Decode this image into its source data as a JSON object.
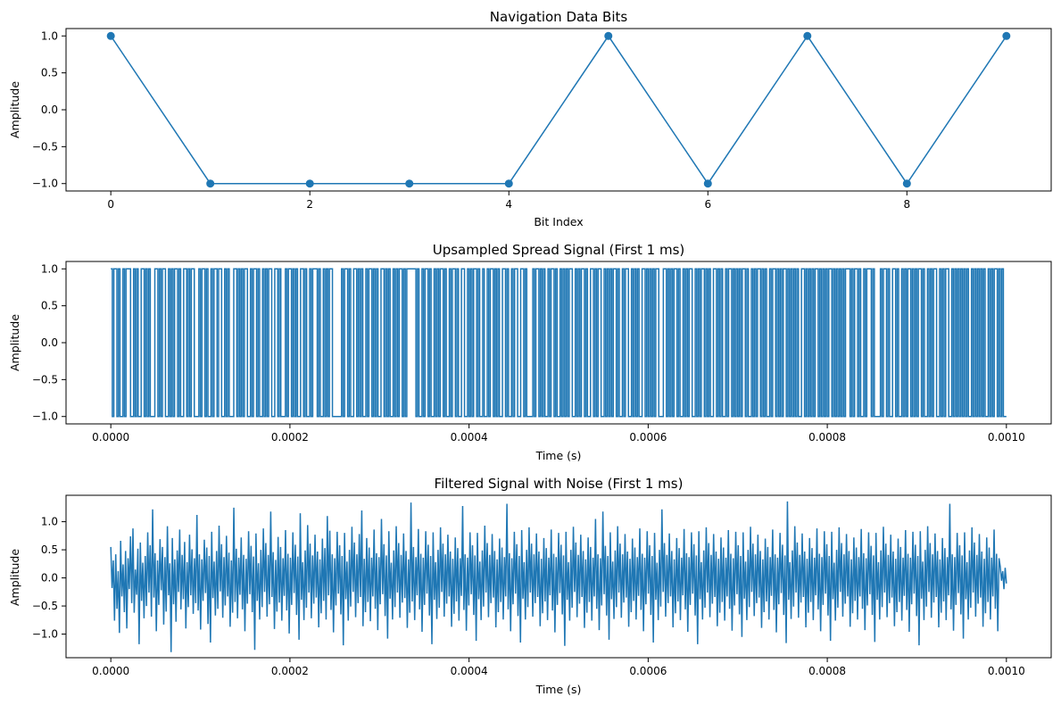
{
  "chart_data": [
    {
      "type": "line",
      "title": "Navigation Data Bits",
      "xlabel": "Bit Index",
      "ylabel": "Amplitude",
      "xlim": [
        -0.45,
        9.45
      ],
      "ylim": [
        -1.1,
        1.1
      ],
      "xticks": [
        0,
        2,
        4,
        6,
        8
      ],
      "xtick_labels": [
        "0",
        "2",
        "4",
        "6",
        "8"
      ],
      "yticks": [
        1.0,
        0.5,
        0.0,
        -0.5,
        -1.0
      ],
      "ytick_labels": [
        "1.0",
        "0.5",
        "0.0",
        "−0.5",
        "−1.0"
      ],
      "markers": true,
      "color": "#1f77b4",
      "x": [
        0,
        1,
        2,
        3,
        4,
        5,
        6,
        7,
        8,
        9
      ],
      "y": [
        1,
        -1,
        -1,
        -1,
        -1,
        1,
        -1,
        1,
        -1,
        1
      ]
    },
    {
      "type": "line",
      "title": "Upsampled Spread Signal (First 1 ms)",
      "xlabel": "Time (s)",
      "ylabel": "Amplitude",
      "xlim": [
        -5e-05,
        0.00105
      ],
      "ylim": [
        -1.1,
        1.1
      ],
      "xticks": [
        0.0,
        0.0002,
        0.0004,
        0.0006,
        0.0008,
        0.001
      ],
      "xtick_labels": [
        "0.0000",
        "0.0002",
        "0.0004",
        "0.0006",
        "0.0008",
        "0.0010"
      ],
      "yticks": [
        1.0,
        0.5,
        0.0,
        -0.5,
        -1.0
      ],
      "ytick_labels": [
        "1.0",
        "0.5",
        "0.0",
        "−0.5",
        "−1.0"
      ],
      "step": true,
      "color": "#1f77b4",
      "t_start": 0.0,
      "t_end": 0.001,
      "chips": [
        1,
        -1,
        1,
        1,
        -1,
        1,
        -1,
        -1,
        1,
        -1,
        1,
        1,
        1,
        -1,
        -1,
        1,
        -1,
        1,
        -1,
        -1,
        1,
        1,
        -1,
        1,
        -1,
        1,
        -1,
        -1,
        -1,
        1,
        1,
        -1,
        1,
        -1,
        1,
        1,
        -1,
        -1,
        1,
        -1,
        1,
        -1,
        1,
        1,
        -1,
        1,
        -1,
        -1,
        1,
        1,
        -1,
        1,
        -1,
        1,
        1,
        -1,
        -1,
        -1,
        1,
        -1,
        1,
        1,
        -1,
        1,
        -1,
        -1,
        1,
        -1,
        1,
        1,
        -1,
        1,
        1,
        -1,
        -1,
        1,
        -1,
        1,
        -1,
        -1,
        -1,
        1,
        1,
        -1,
        1,
        -1,
        1,
        -1,
        1,
        1,
        -1,
        -1,
        1,
        -1,
        1,
        1,
        -1,
        1,
        -1,
        -1,
        1,
        -1,
        1,
        -1,
        1,
        1,
        -1,
        -1,
        1,
        1,
        -1,
        1,
        -1,
        -1,
        -1,
        1,
        -1,
        1,
        1,
        -1,
        1,
        -1,
        1,
        -1,
        -1,
        1,
        1,
        -1,
        1,
        -1,
        -1,
        1,
        -1,
        1,
        1,
        1,
        -1,
        1,
        -1,
        -1,
        1,
        -1,
        1,
        -1,
        1,
        1,
        -1,
        -1,
        -1,
        -1,
        -1,
        -1,
        1,
        -1,
        1,
        1,
        -1,
        1,
        -1,
        -1,
        1,
        1,
        -1,
        1,
        -1,
        1,
        -1,
        -1,
        1,
        -1,
        1,
        1,
        -1,
        1,
        -1,
        1,
        -1,
        -1,
        1,
        1,
        -1,
        1,
        -1,
        1,
        -1,
        -1,
        1,
        -1,
        1,
        -1,
        1,
        1,
        -1,
        1,
        -1,
        1,
        1,
        1,
        1,
        1,
        1,
        -1,
        1,
        -1,
        -1,
        1,
        -1,
        1,
        1,
        -1,
        1,
        -1,
        -1,
        1,
        -1,
        1,
        -1,
        1,
        1,
        -1,
        1,
        -1,
        -1,
        1,
        -1,
        1,
        1,
        -1,
        1,
        -1,
        -1,
        1,
        1,
        -1,
        -1,
        1,
        -1,
        1,
        -1,
        1,
        1,
        -1,
        1,
        -1,
        -1,
        1,
        -1,
        -1,
        1,
        -1,
        1,
        1,
        -1,
        1,
        -1,
        1,
        -1,
        -1,
        1,
        1,
        -1,
        1,
        -1,
        -1,
        1,
        -1,
        1,
        1,
        -1,
        -1,
        1,
        1,
        -1,
        1,
        -1,
        -1,
        -1,
        -1,
        1,
        -1,
        1,
        1,
        -1,
        1,
        -1,
        1,
        -1,
        -1,
        1,
        -1,
        1,
        1,
        -1,
        1,
        -1,
        -1,
        1,
        -1,
        1,
        -1,
        1,
        -1,
        1,
        1,
        -1,
        -1,
        1,
        -1,
        1,
        -1,
        1,
        1,
        -1,
        1,
        -1,
        -1,
        1,
        1,
        -1,
        1,
        -1,
        1,
        1,
        -1,
        -1,
        1,
        -1,
        1,
        -1,
        1,
        -1,
        1,
        1,
        -1,
        1,
        -1,
        -1,
        1,
        -1,
        1,
        1,
        -1,
        -1,
        1,
        -1,
        1,
        -1,
        1,
        -1,
        -1,
        1,
        1,
        -1,
        1,
        -1,
        1,
        -1,
        1,
        -1,
        1,
        1,
        -1,
        -1,
        -1,
        1,
        1,
        -1,
        1,
        -1,
        1,
        -1,
        1,
        1,
        -1,
        1,
        -1,
        -1,
        1,
        -1,
        1,
        -1,
        1,
        1,
        -1,
        -1,
        1,
        -1,
        1,
        -1,
        1,
        1,
        -1,
        1,
        -1,
        1,
        -1,
        -1,
        1,
        1,
        -1,
        1,
        -1,
        1,
        -1,
        -1,
        1,
        -1,
        1,
        1,
        -1,
        1,
        -1,
        1,
        -1,
        1,
        -1,
        1,
        1,
        -1,
        1,
        -1,
        -1,
        1,
        -1,
        1,
        -1,
        1,
        1,
        -1,
        1,
        -1,
        1,
        -1,
        -1,
        1,
        -1,
        1,
        1,
        -1,
        1,
        -1,
        1,
        -1,
        1,
        1,
        -1,
        1,
        -1,
        1,
        -1,
        1,
        -1,
        1,
        -1,
        -1,
        1,
        1,
        -1,
        1,
        -1,
        1,
        -1,
        1,
        -1,
        1,
        1,
        -1,
        1,
        -1,
        1,
        -1,
        1,
        -1,
        1,
        1,
        -1,
        1,
        -1,
        1,
        -1,
        1,
        -1,
        1,
        -1,
        1,
        1,
        1,
        -1,
        1,
        -1,
        1,
        1,
        -1,
        1,
        -1,
        -1,
        1,
        -1,
        1,
        1,
        1,
        -1,
        1,
        -1,
        -1,
        -1,
        -1,
        1,
        -1,
        1,
        1,
        -1,
        1,
        -1,
        -1,
        1,
        1,
        -1,
        1,
        -1,
        -1,
        1,
        -1,
        1,
        -1,
        1,
        1,
        -1,
        1,
        -1,
        1,
        -1,
        1,
        1,
        -1,
        1,
        -1,
        -1,
        1,
        -1,
        1,
        -1,
        1,
        1,
        -1,
        -1,
        1,
        -1,
        1,
        -1,
        1,
        1,
        -1,
        -1,
        1,
        -1,
        1,
        -1,
        1,
        -1,
        1,
        -1,
        1,
        -1,
        1,
        -1,
        -1,
        1,
        -1,
        1,
        -1,
        1,
        -1,
        1,
        -1,
        1,
        -1,
        -1,
        1,
        -1,
        1,
        -1,
        1,
        1,
        -1,
        1,
        -1,
        1,
        -1,
        -1
      ]
    },
    {
      "type": "line",
      "title": "Filtered Signal with Noise (First 1 ms)",
      "xlabel": "Time (s)",
      "ylabel": "Amplitude",
      "xlim": [
        -5e-05,
        0.00105
      ],
      "ylim": [
        -1.42,
        1.47
      ],
      "xticks": [
        0.0,
        0.0002,
        0.0004,
        0.0006,
        0.0008,
        0.001
      ],
      "xtick_labels": [
        "0.0000",
        "0.0002",
        "0.0004",
        "0.0006",
        "0.0008",
        "0.0010"
      ],
      "yticks": [
        1.0,
        0.5,
        0.0,
        -0.5,
        -1.0
      ],
      "ytick_labels": [
        "1.0",
        "0.5",
        "0.0",
        "−0.5",
        "−1.0"
      ],
      "color": "#1f77b4",
      "t_start": 0.0,
      "t_end": 0.001,
      "samples": [
        0.55,
        -0.18,
        0.31,
        -0.76,
        0.42,
        -0.55,
        0.12,
        -0.98,
        0.66,
        -0.33,
        0.24,
        -0.61,
        0.48,
        -0.9,
        0.35,
        -0.2,
        0.74,
        -0.45,
        0.88,
        -0.62,
        0.15,
        -0.3,
        0.52,
        -1.18,
        0.63,
        -0.41,
        0.27,
        -0.72,
        0.39,
        -0.5,
        0.81,
        -0.26,
        0.58,
        -0.69,
        1.22,
        -0.35,
        0.44,
        -0.95,
        0.31,
        -0.48,
        0.69,
        -0.22,
        0.55,
        -0.83,
        0.37,
        -0.6,
        0.92,
        -0.31,
        0.26,
        -1.32,
        0.71,
        -0.47,
        0.33,
        -0.78,
        0.49,
        -0.25,
        0.86,
        -0.56,
        0.41,
        -0.38,
        0.64,
        -0.9,
        0.28,
        -0.52,
        0.77,
        -0.31,
        0.51,
        -0.64,
        0.35,
        -0.45,
        1.12,
        -0.58,
        0.42,
        -0.92,
        0.33,
        -0.41,
        0.68,
        -0.27,
        0.54,
        -0.82,
        0.39,
        -1.15,
        0.82,
        -0.36,
        0.29,
        -0.67,
        0.48,
        -0.55,
        0.93,
        -0.24,
        0.6,
        -0.71,
        0.37,
        -0.49,
        0.75,
        -0.33,
        0.45,
        -0.87,
        0.31,
        -0.62,
        1.25,
        -0.43,
        0.52,
        -0.72,
        0.36,
        -0.3,
        0.72,
        -0.56,
        0.41,
        -0.95,
        0.34,
        -0.46,
        0.83,
        -0.29,
        0.57,
        -0.61,
        0.38,
        -1.28,
        0.79,
        -0.41,
        0.26,
        -0.74,
        0.5,
        -0.52,
        0.88,
        -0.25,
        0.62,
        -0.69,
        0.41,
        -0.47,
        1.18,
        -0.34,
        0.46,
        -0.91,
        0.32,
        -0.6,
        0.73,
        -0.44,
        0.55,
        -0.76,
        0.35,
        -0.32,
        0.85,
        -0.58,
        0.43,
        -0.99,
        0.36,
        -0.48,
        0.81,
        -0.27,
        0.59,
        -0.66,
        0.38,
        -1.1,
        1.15,
        -0.39,
        0.28,
        -0.75,
        0.49,
        -0.53,
        0.94,
        -0.26,
        0.61,
        -0.72,
        0.4,
        -0.46,
        0.77,
        -0.35,
        0.47,
        -0.88,
        0.33,
        -0.63,
        0.7,
        -0.41,
        0.53,
        -0.74,
        1.1,
        -0.31,
        0.84,
        -0.57,
        0.42,
        -0.97,
        0.35,
        -0.49,
        0.82,
        -0.28,
        0.58,
        -0.65,
        0.39,
        -1.2,
        0.8,
        -0.38,
        0.29,
        -0.76,
        0.5,
        -0.51,
        0.91,
        -0.25,
        0.63,
        -0.7,
        0.42,
        -0.45,
        0.78,
        -0.34,
        1.2,
        -0.86,
        0.34,
        -0.61,
        0.71,
        -0.43,
        0.54,
        -0.77,
        0.36,
        -0.33,
        0.86,
        -0.55,
        0.44,
        -0.93,
        0.37,
        -0.47,
        1.05,
        -0.29,
        0.6,
        -0.68,
        0.4,
        -1.08,
        0.83,
        -0.37,
        0.27,
        -0.74,
        0.49,
        -0.52,
        0.92,
        -0.26,
        0.62,
        -0.71,
        0.41,
        -0.44,
        0.79,
        -0.36,
        0.48,
        -0.89,
        0.33,
        -0.62,
        1.34,
        -0.42,
        0.55,
        -0.75,
        0.37,
        -0.31,
        0.87,
        -0.56,
        0.43,
        -0.96,
        0.36,
        -0.48,
        0.83,
        -0.28,
        0.59,
        -0.67,
        0.39,
        -1.18,
        0.81,
        -0.39,
        0.28,
        -0.73,
        0.5,
        -0.53,
        0.9,
        -0.25,
        0.61,
        -0.69,
        0.42,
        -0.46,
        0.77,
        -0.33,
        0.47,
        -0.87,
        0.34,
        -0.64,
        0.72,
        -0.42,
        0.53,
        -0.76,
        0.35,
        -0.32,
        1.28,
        -0.57,
        0.42,
        -0.94,
        0.36,
        -0.49,
        0.81,
        -0.29,
        0.58,
        -0.66,
        0.4,
        -1.12,
        0.8,
        -0.38,
        0.29,
        -0.75,
        0.49,
        -0.51,
        0.93,
        -0.26,
        0.62,
        -0.7,
        0.41,
        -0.45,
        0.78,
        -0.35,
        0.48,
        -0.88,
        0.33,
        -0.61,
        0.7,
        -0.43,
        0.54,
        -0.74,
        0.37,
        -0.33,
        1.32,
        -0.56,
        0.44,
        -0.95,
        0.35,
        -0.47,
        0.82,
        -0.28,
        0.6,
        -0.68,
        0.39,
        -1.15,
        0.85,
        -0.37,
        0.28,
        -0.74,
        0.5,
        -0.52,
        0.9,
        -0.26,
        0.61,
        -0.69,
        0.42,
        -0.45,
        0.79,
        -0.34,
        0.47,
        -0.86,
        0.34,
        -0.63,
        0.71,
        -0.42,
        0.53,
        -0.75,
        0.36,
        -0.31,
        0.86,
        -0.58,
        0.43,
        -0.97,
        0.37,
        -0.48,
        0.8,
        -0.27,
        0.59,
        -0.65,
        0.4,
        -1.21,
        0.82,
        -0.39,
        0.28,
        -0.76,
        0.5,
        -0.53,
        0.91,
        -0.25,
        0.63,
        -0.7,
        0.41,
        -0.46,
        0.77,
        -0.34,
        0.48,
        -0.89,
        0.33,
        -0.62,
        0.72,
        -0.43,
        0.55,
        -0.76,
        0.36,
        -0.33,
        1.05,
        -0.55,
        0.42,
        -0.93,
        0.35,
        -0.49,
        1.18,
        -0.29,
        0.57,
        -0.67,
        0.39,
        -1.1,
        0.81,
        -0.38,
        0.29,
        -0.73,
        0.49,
        -0.52,
        0.92,
        -0.26,
        0.61,
        -0.71,
        0.42,
        -0.44,
        0.78,
        -0.35,
        0.47,
        -0.87,
        0.34,
        -0.61,
        0.7,
        -0.41,
        0.54,
        -0.74,
        0.37,
        -0.32,
        0.88,
        -0.57,
        0.43,
        -0.95,
        0.36,
        -0.47,
        0.83,
        -0.28,
        0.58,
        -0.66,
        0.39,
        -1.15,
        0.8,
        -0.39,
        0.27,
        -0.75,
        0.5,
        -0.51,
        1.22,
        -0.25,
        0.62,
        -0.69,
        0.41,
        -0.45,
        0.79,
        -0.33,
        0.48,
        -0.88,
        0.33,
        -0.63,
        0.71,
        -0.42,
        0.53,
        -0.75,
        0.36,
        -0.31,
        0.87,
        -0.56,
        0.44,
        -0.96,
        0.37,
        -0.48,
        0.81,
        -0.28,
        0.6,
        -0.67,
        0.4,
        -1.18,
        0.83,
        -0.38,
        0.28,
        -0.74,
        0.49,
        -0.53,
        0.9,
        -0.26,
        0.62,
        -0.7,
        0.41,
        -0.46,
        0.78,
        -0.34,
        0.47,
        -0.86,
        0.34,
        -0.62,
        0.72,
        -0.43,
        0.54,
        -0.76,
        0.36,
        -0.33,
        0.85,
        -0.55,
        0.43,
        -0.94,
        0.35,
        -0.49,
        0.82,
        -0.29,
        0.58,
        -0.65,
        0.39,
        -1.05,
        0.81,
        -0.37,
        0.29,
        -0.75,
        0.5,
        -0.52,
        0.91,
        -0.25,
        0.61,
        -0.68,
        0.42,
        -0.45,
        0.77,
        -0.35,
        0.48,
        -0.89,
        0.33,
        -0.61,
        0.7,
        -0.42,
        0.55,
        -0.74,
        0.37,
        -0.32,
        0.86,
        -0.57,
        0.42,
        -0.97,
        0.36,
        -0.47,
        0.8,
        -0.27,
        0.59,
        -0.66,
        0.4,
        -1.16,
        1.36,
        -0.39,
        0.28,
        -0.73,
        0.49,
        -0.51,
        0.92,
        -0.26,
        0.63,
        -0.71,
        0.41,
        -0.44,
        0.79,
        -0.34,
        0.47,
        -0.88,
        0.34,
        -0.62,
        0.71,
        -0.43,
        0.53,
        -0.75,
        0.36,
        -0.31,
        0.88,
        -0.56,
        0.43,
        -0.95,
        0.37,
        -0.48,
        0.83,
        -0.28,
        0.6,
        -0.67,
        0.39,
        -1.12,
        0.82,
        -0.38,
        0.27,
        -0.76,
        0.5,
        -0.53,
        0.9,
        -0.25,
        0.62,
        -0.69,
        0.42,
        -0.46,
        0.78,
        -0.33,
        0.48,
        -0.87,
        0.33,
        -0.63,
        0.72,
        -0.41,
        0.54,
        -0.74,
        0.37,
        -0.33,
        0.87,
        -0.55,
        0.44,
        -0.93,
        0.35,
        -0.49,
        0.81,
        -0.29,
        0.57,
        -0.66,
        0.4,
        -1.14,
        0.8,
        -0.39,
        0.28,
        -0.74,
        0.49,
        -0.52,
        0.91,
        -0.26,
        0.61,
        -0.7,
        0.41,
        -0.45,
        0.77,
        -0.35,
        0.47,
        -0.86,
        0.34,
        -0.61,
        0.7,
        -0.43,
        0.55,
        -0.76,
        0.36,
        -0.32,
        0.85,
        -0.57,
        0.43,
        -0.96,
        0.36,
        -0.47,
        0.82,
        -0.28,
        0.59,
        -0.68,
        0.39,
        -1.2,
        0.83,
        -0.37,
        0.29,
        -0.75,
        0.5,
        -0.51,
        0.92,
        -0.25,
        0.62,
        -0.71,
        0.42,
        -0.44,
        0.79,
        -0.34,
        0.48,
        -0.88,
        0.33,
        -0.62,
        0.71,
        -0.42,
        0.53,
        -0.75,
        0.37,
        -0.31,
        1.32,
        -0.56,
        0.42,
        -0.94,
        0.37,
        -0.48,
        0.8,
        -0.27,
        0.58,
        -0.65,
        0.4,
        -1.08,
        0.81,
        -0.38,
        0.28,
        -0.74,
        0.49,
        -0.53,
        0.9,
        -0.26,
        0.63,
        -0.69,
        0.41,
        -0.46,
        0.78,
        -0.35,
        0.47,
        -0.87,
        0.34,
        -0.63,
        0.72,
        -0.43,
        0.54,
        -0.74,
        0.36,
        -0.33,
        0.86,
        -0.55,
        0.43,
        -0.95,
        0.35,
        0.2,
        -0.05,
        0.12,
        -0.2,
        0.18,
        -0.1
      ]
    }
  ]
}
